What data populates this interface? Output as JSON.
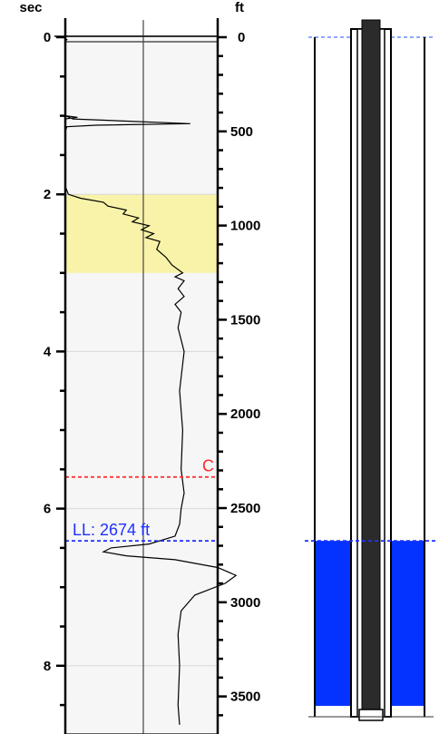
{
  "log_panel": {
    "left_axis": {
      "unit": "sec",
      "min": 0,
      "max": 8.75,
      "ticks": [
        0,
        2,
        4,
        6,
        8
      ]
    },
    "right_axis": {
      "unit": "ft",
      "min": 0,
      "max": 3600,
      "ticks": [
        0,
        500,
        1000,
        1500,
        2000,
        2500,
        3000,
        3500
      ]
    },
    "highlight_zone_sec": [
      2,
      3
    ],
    "colors": {
      "zone": "#f8f3a8",
      "panel": "#f6f6f6",
      "trace": "#000000",
      "marker_c": "#ff2a2a",
      "marker_ll": "#2030ff",
      "fluid": "#0433ff"
    },
    "markers": [
      {
        "id": "c",
        "label": "C",
        "depth_ft": 2335,
        "color": "#ff2a2a"
      },
      {
        "id": "ll",
        "label": "LL: 2674 ft",
        "depth_ft": 2674,
        "color": "#2030ff"
      }
    ],
    "trace": [
      [
        0.0,
        0.0
      ],
      [
        0.02,
        0.0
      ],
      [
        0.03,
        0.01
      ],
      [
        0.05,
        0.0
      ],
      [
        1.0,
        0.0
      ],
      [
        1.02,
        0.08
      ],
      [
        1.04,
        0.0
      ],
      [
        1.0,
        0.0
      ],
      [
        1.04,
        0.05
      ],
      [
        1.1,
        0.82
      ],
      [
        1.12,
        0.2
      ],
      [
        1.14,
        0.01
      ],
      [
        1.2,
        0.0
      ],
      [
        1.9,
        0.0
      ],
      [
        2.0,
        0.02
      ],
      [
        2.05,
        0.1
      ],
      [
        2.1,
        0.25
      ],
      [
        2.15,
        0.28
      ],
      [
        2.2,
        0.4
      ],
      [
        2.25,
        0.38
      ],
      [
        2.3,
        0.48
      ],
      [
        2.35,
        0.44
      ],
      [
        2.4,
        0.55
      ],
      [
        2.45,
        0.5
      ],
      [
        2.5,
        0.58
      ],
      [
        2.55,
        0.53
      ],
      [
        2.6,
        0.62
      ],
      [
        2.7,
        0.6
      ],
      [
        2.8,
        0.66
      ],
      [
        2.9,
        0.7
      ],
      [
        3.0,
        0.77
      ],
      [
        3.05,
        0.72
      ],
      [
        3.1,
        0.78
      ],
      [
        3.2,
        0.74
      ],
      [
        3.3,
        0.78
      ],
      [
        3.4,
        0.72
      ],
      [
        3.5,
        0.76
      ],
      [
        3.7,
        0.74
      ],
      [
        4.0,
        0.78
      ],
      [
        4.5,
        0.75
      ],
      [
        5.0,
        0.77
      ],
      [
        5.5,
        0.76
      ],
      [
        5.8,
        0.78
      ],
      [
        6.0,
        0.76
      ],
      [
        6.2,
        0.75
      ],
      [
        6.35,
        0.72
      ],
      [
        6.45,
        0.55
      ],
      [
        6.5,
        0.3
      ],
      [
        6.55,
        0.25
      ],
      [
        6.6,
        0.4
      ],
      [
        6.65,
        0.72
      ],
      [
        6.75,
        1.0
      ],
      [
        6.85,
        1.12
      ],
      [
        6.95,
        1.05
      ],
      [
        7.1,
        0.85
      ],
      [
        7.3,
        0.76
      ],
      [
        7.6,
        0.74
      ],
      [
        8.0,
        0.75
      ],
      [
        8.5,
        0.74
      ],
      [
        8.75,
        0.75
      ]
    ]
  },
  "well_diagram": {
    "total_depth_ft": 3500,
    "fluid_top_ft": 2674,
    "fluid_bottom_ft": 3550
  }
}
